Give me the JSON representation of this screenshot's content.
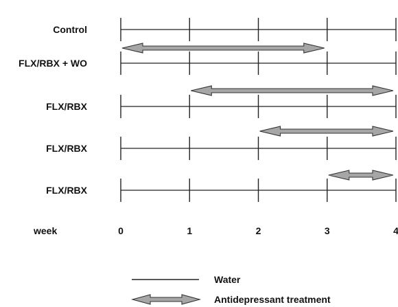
{
  "rows": [
    {
      "label": "Control",
      "treatment": null
    },
    {
      "label": "FLX/RBX + WO",
      "treatment": [
        0,
        3
      ]
    },
    {
      "label": "FLX/RBX",
      "treatment": [
        1,
        4
      ]
    },
    {
      "label": "FLX/RBX",
      "treatment": [
        2,
        4
      ]
    },
    {
      "label": "FLX/RBX",
      "treatment": [
        3,
        4
      ]
    }
  ],
  "axis": {
    "label": "week",
    "ticks": [
      "0",
      "1",
      "2",
      "3",
      "4"
    ],
    "range": [
      0,
      4
    ]
  },
  "legend": {
    "water_label": "Water",
    "treatment_label": "Antidepressant treatment"
  },
  "colors": {
    "line": "#222222",
    "arrow_fill": "#a6a6a6",
    "arrow_stroke": "#333333"
  }
}
